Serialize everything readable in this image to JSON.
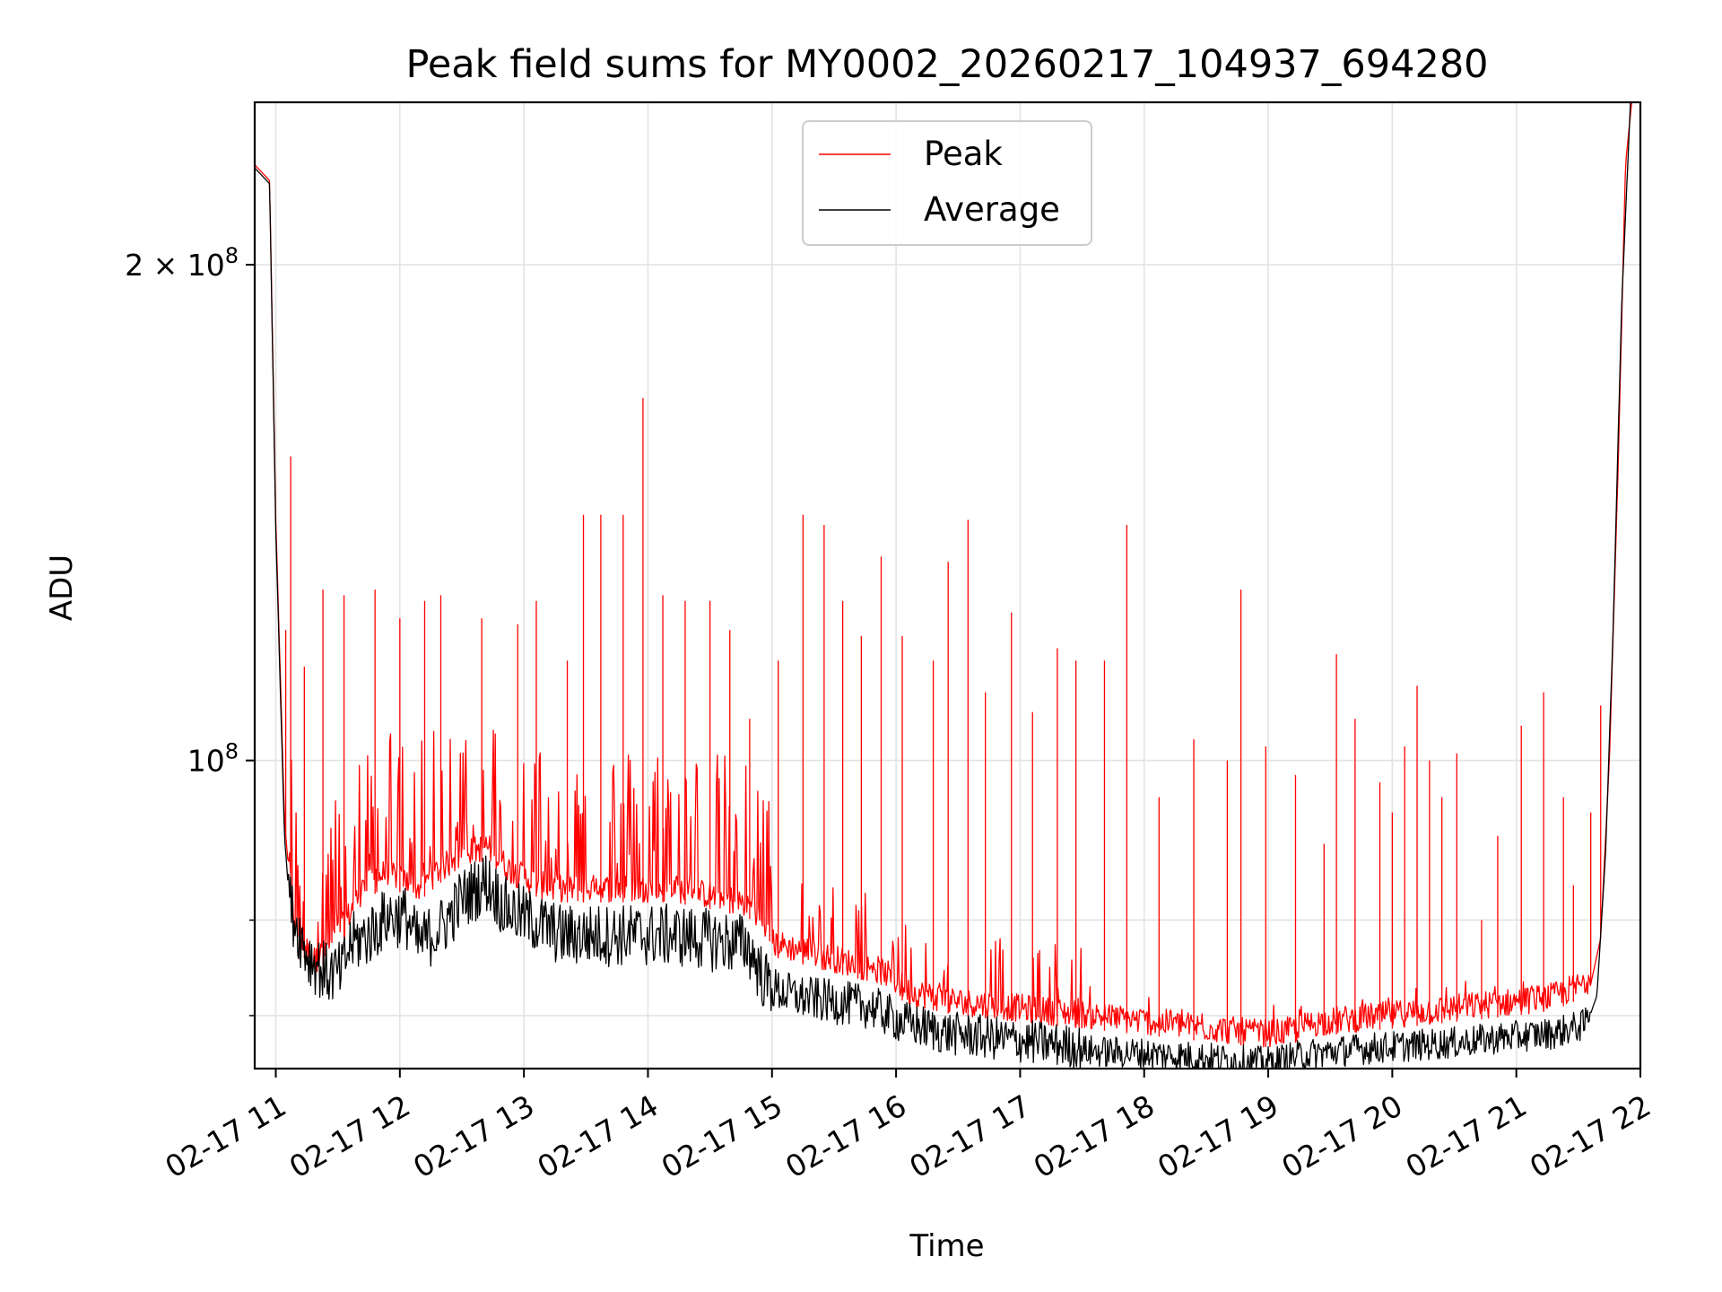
{
  "chart_data": {
    "type": "line",
    "title": "Peak field sums for MY0002_20260217_104937_694280",
    "xlabel": "Time",
    "ylabel": "ADU",
    "yscale": "log",
    "grid": true,
    "legend_location": "upper center",
    "xlim": [
      10.83,
      22.0
    ],
    "ylim": [
      65000000.0,
      251000000.0
    ],
    "x_unit": "hours on 2026-02-17",
    "x_ticks": [
      11,
      12,
      13,
      14,
      15,
      16,
      17,
      18,
      19,
      20,
      21,
      22
    ],
    "x_tick_labels": [
      "02-17 11",
      "02-17 12",
      "02-17 13",
      "02-17 14",
      "02-17 15",
      "02-17 16",
      "02-17 17",
      "02-17 18",
      "02-17 19",
      "02-17 20",
      "02-17 21",
      "02-17 22"
    ],
    "y_major_ticks": [
      100000000.0,
      200000000.0
    ],
    "y_major_labels": [
      {
        "base": "10",
        "exp": "8"
      },
      {
        "base": "2 × 10",
        "exp": "8"
      }
    ],
    "y_minor_ticks": [
      70000000.0,
      80000000.0
    ],
    "series": [
      {
        "name": "Peak",
        "color": "#ff0000",
        "line_width": 1,
        "baseline": [
          [
            10.83,
            230000000.0
          ],
          [
            10.95,
            225000000.0
          ],
          [
            11.0,
            140000000.0
          ],
          [
            11.07,
            92000000.0
          ],
          [
            11.15,
            78000000.0
          ],
          [
            11.3,
            74000000.0
          ],
          [
            11.45,
            76000000.0
          ],
          [
            11.55,
            78000000.0
          ],
          [
            11.7,
            82000000.0
          ],
          [
            11.9,
            84000000.0
          ],
          [
            12.15,
            82000000.0
          ],
          [
            12.3,
            84000000.0
          ],
          [
            12.5,
            86000000.0
          ],
          [
            12.7,
            87000000.0
          ],
          [
            12.9,
            84000000.0
          ],
          [
            13.2,
            82000000.0
          ],
          [
            13.5,
            82000000.0
          ],
          [
            13.8,
            82000000.0
          ],
          [
            14.2,
            82000000.0
          ],
          [
            14.6,
            81000000.0
          ],
          [
            14.85,
            80000000.0
          ],
          [
            15.0,
            76000000.0
          ],
          [
            15.3,
            75000000.0
          ],
          [
            15.6,
            74000000.0
          ],
          [
            15.9,
            73000000.0
          ],
          [
            16.1,
            71000000.0
          ],
          [
            16.5,
            70000000.0
          ],
          [
            16.9,
            69500000.0
          ],
          [
            17.3,
            69000000.0
          ],
          [
            17.7,
            68500000.0
          ],
          [
            18.1,
            68000000.0
          ],
          [
            18.5,
            67500000.0
          ],
          [
            18.9,
            67000000.0
          ],
          [
            19.1,
            67000000.0
          ],
          [
            19.4,
            68000000.0
          ],
          [
            19.8,
            68500000.0
          ],
          [
            20.2,
            69000000.0
          ],
          [
            20.6,
            69500000.0
          ],
          [
            21.0,
            70000000.0
          ],
          [
            21.3,
            70500000.0
          ],
          [
            21.58,
            72000000.0
          ],
          [
            21.68,
            78000000.0
          ],
          [
            21.75,
            100000000.0
          ],
          [
            21.82,
            150000000.0
          ],
          [
            21.88,
            230000000.0
          ],
          [
            21.93,
            251000000.0
          ]
        ],
        "spikes": [
          [
            11.08,
            120000000.0
          ],
          [
            11.12,
            153000000.0
          ],
          [
            11.23,
            114000000.0
          ],
          [
            11.38,
            127000000.0
          ],
          [
            11.55,
            126000000.0
          ],
          [
            11.8,
            127000000.0
          ],
          [
            12.0,
            122000000.0
          ],
          [
            12.2,
            125000000.0
          ],
          [
            12.33,
            126000000.0
          ],
          [
            12.66,
            122000000.0
          ],
          [
            12.95,
            121000000.0
          ],
          [
            13.1,
            125000000.0
          ],
          [
            13.35,
            115000000.0
          ],
          [
            13.48,
            141000000.0
          ],
          [
            13.62,
            141000000.0
          ],
          [
            13.8,
            141000000.0
          ],
          [
            13.96,
            166000000.0
          ],
          [
            14.12,
            126000000.0
          ],
          [
            14.3,
            125000000.0
          ],
          [
            14.5,
            125000000.0
          ],
          [
            14.66,
            120000000.0
          ],
          [
            14.82,
            106000000.0
          ],
          [
            15.05,
            115000000.0
          ],
          [
            15.25,
            141000000.0
          ],
          [
            15.42,
            139000000.0
          ],
          [
            15.57,
            125000000.0
          ],
          [
            15.72,
            119000000.0
          ],
          [
            15.88,
            133000000.0
          ],
          [
            16.05,
            119000000.0
          ],
          [
            16.3,
            115000000.0
          ],
          [
            16.42,
            132000000.0
          ],
          [
            16.58,
            140000000.0
          ],
          [
            16.72,
            110000000.0
          ],
          [
            16.93,
            123000000.0
          ],
          [
            17.1,
            107000000.0
          ],
          [
            17.3,
            117000000.0
          ],
          [
            17.45,
            115000000.0
          ],
          [
            17.68,
            115000000.0
          ],
          [
            17.86,
            139000000.0
          ],
          [
            18.12,
            95000000.0
          ],
          [
            18.4,
            103000000.0
          ],
          [
            18.67,
            100000000.0
          ],
          [
            18.78,
            127000000.0
          ],
          [
            18.98,
            102000000.0
          ],
          [
            19.22,
            98000000.0
          ],
          [
            19.45,
            89000000.0
          ],
          [
            19.55,
            116000000.0
          ],
          [
            19.7,
            106000000.0
          ],
          [
            19.9,
            97000000.0
          ],
          [
            20.0,
            93000000.0
          ],
          [
            20.1,
            102000000.0
          ],
          [
            20.2,
            111000000.0
          ],
          [
            20.3,
            100000000.0
          ],
          [
            20.4,
            95000000.0
          ],
          [
            20.52,
            101000000.0
          ],
          [
            20.72,
            80000000.0
          ],
          [
            20.85,
            90000000.0
          ],
          [
            21.04,
            105000000.0
          ],
          [
            21.22,
            110000000.0
          ],
          [
            21.38,
            95000000.0
          ],
          [
            21.46,
            84000000.0
          ],
          [
            21.6,
            93000000.0
          ],
          [
            21.68,
            108000000.0
          ]
        ]
      },
      {
        "name": "Average",
        "color": "#000000",
        "line_width": 1,
        "baseline": [
          [
            10.83,
            229000000.0
          ],
          [
            10.95,
            224000000.0
          ],
          [
            11.0,
            138000000.0
          ],
          [
            11.07,
            90000000.0
          ],
          [
            11.12,
            80000000.0
          ],
          [
            11.25,
            75000000.0
          ],
          [
            11.4,
            73000000.0
          ],
          [
            11.53,
            73000000.0
          ],
          [
            11.6,
            76000000.0
          ],
          [
            11.75,
            77000000.0
          ],
          [
            11.9,
            79000000.0
          ],
          [
            12.05,
            79000000.0
          ],
          [
            12.15,
            76000000.0
          ],
          [
            12.35,
            78000000.0
          ],
          [
            12.5,
            81000000.0
          ],
          [
            12.7,
            83000000.0
          ],
          [
            12.85,
            80000000.0
          ],
          [
            13.0,
            79000000.0
          ],
          [
            13.3,
            77000000.0
          ],
          [
            13.6,
            77000000.0
          ],
          [
            13.9,
            77000000.0
          ],
          [
            14.2,
            77000000.0
          ],
          [
            14.5,
            76500000.0
          ],
          [
            14.8,
            76000000.0
          ],
          [
            14.95,
            72000000.0
          ],
          [
            15.2,
            71000000.0
          ],
          [
            15.5,
            70500000.0
          ],
          [
            15.8,
            70000000.0
          ],
          [
            16.05,
            68500000.0
          ],
          [
            16.4,
            67500000.0
          ],
          [
            16.8,
            67000000.0
          ],
          [
            17.2,
            66500000.0
          ],
          [
            17.6,
            66000000.0
          ],
          [
            18.0,
            65800000.0
          ],
          [
            18.4,
            65500000.0
          ],
          [
            18.7,
            65200000.0
          ],
          [
            19.0,
            65000000.0
          ],
          [
            19.3,
            65700000.0
          ],
          [
            19.7,
            66200000.0
          ],
          [
            20.1,
            66500000.0
          ],
          [
            20.5,
            66800000.0
          ],
          [
            20.9,
            67300000.0
          ],
          [
            21.3,
            67700000.0
          ],
          [
            21.55,
            68500000.0
          ],
          [
            21.65,
            72000000.0
          ],
          [
            21.72,
            88000000.0
          ],
          [
            21.78,
            120000000.0
          ],
          [
            21.85,
            190000000.0
          ],
          [
            21.92,
            251000000.0
          ]
        ]
      }
    ]
  }
}
